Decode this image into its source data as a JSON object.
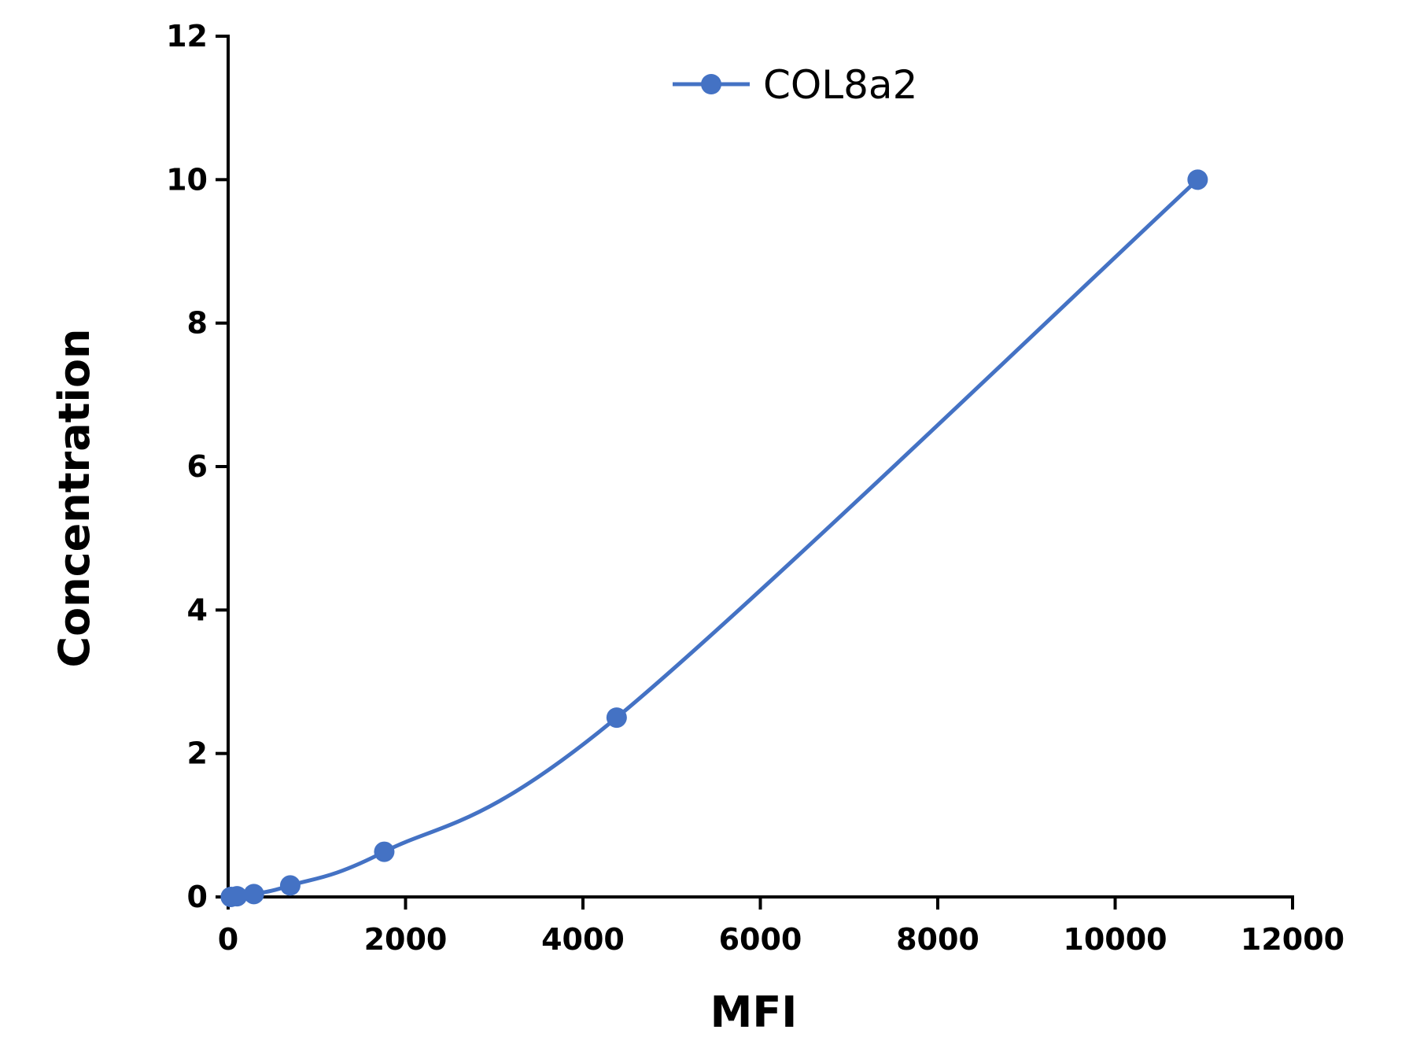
{
  "chart_data": {
    "type": "line",
    "title": "",
    "xlabel": "MFI",
    "ylabel": "Concentration",
    "xlim": [
      0,
      12000
    ],
    "ylim": [
      0,
      12
    ],
    "xticks": [
      "0",
      "2000",
      "4000",
      "6000",
      "8000",
      "10000",
      "12000"
    ],
    "yticks": [
      "0",
      "2",
      "4",
      "6",
      "8",
      "10",
      "12"
    ],
    "grid": false,
    "legend_position": "top-center",
    "series": [
      {
        "name": "COL8a2",
        "color": "#4472C4",
        "marker": "circle",
        "x": [
          30,
          100,
          290,
          700,
          1760,
          4380,
          10930
        ],
        "y": [
          0.0,
          0.01,
          0.04,
          0.16,
          0.63,
          2.5,
          10.0
        ]
      }
    ]
  }
}
